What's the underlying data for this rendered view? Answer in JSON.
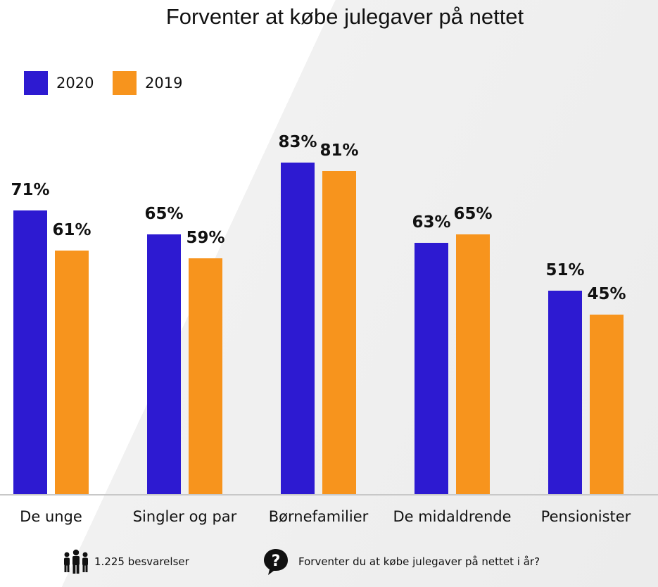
{
  "chart_data": {
    "type": "bar",
    "title": "Forventer at købe julegaver på nettet",
    "categories": [
      "De unge",
      "Singler og par",
      "Børnefamilier",
      "De midaldrende",
      "Pensionister"
    ],
    "series": [
      {
        "name": "2020",
        "color": "#2d1ad1",
        "values": [
          71,
          65,
          83,
          63,
          51
        ],
        "labels": [
          "71%",
          "65%",
          "83%",
          "63%",
          "51%"
        ]
      },
      {
        "name": "2019",
        "color": "#f7941d",
        "values": [
          61,
          59,
          81,
          65,
          45
        ],
        "labels": [
          "61%",
          "59%",
          "81%",
          "65%",
          "45%"
        ]
      }
    ],
    "ylim": [
      0,
      100
    ],
    "grid": false,
    "legend_position": "top-left"
  },
  "footer": {
    "respondents": "1.225 besvarelser",
    "question": "Forventer du at købe julegaver på nettet i år?",
    "respondents_icon": "people-icon",
    "question_icon": "question-bubble-icon"
  }
}
